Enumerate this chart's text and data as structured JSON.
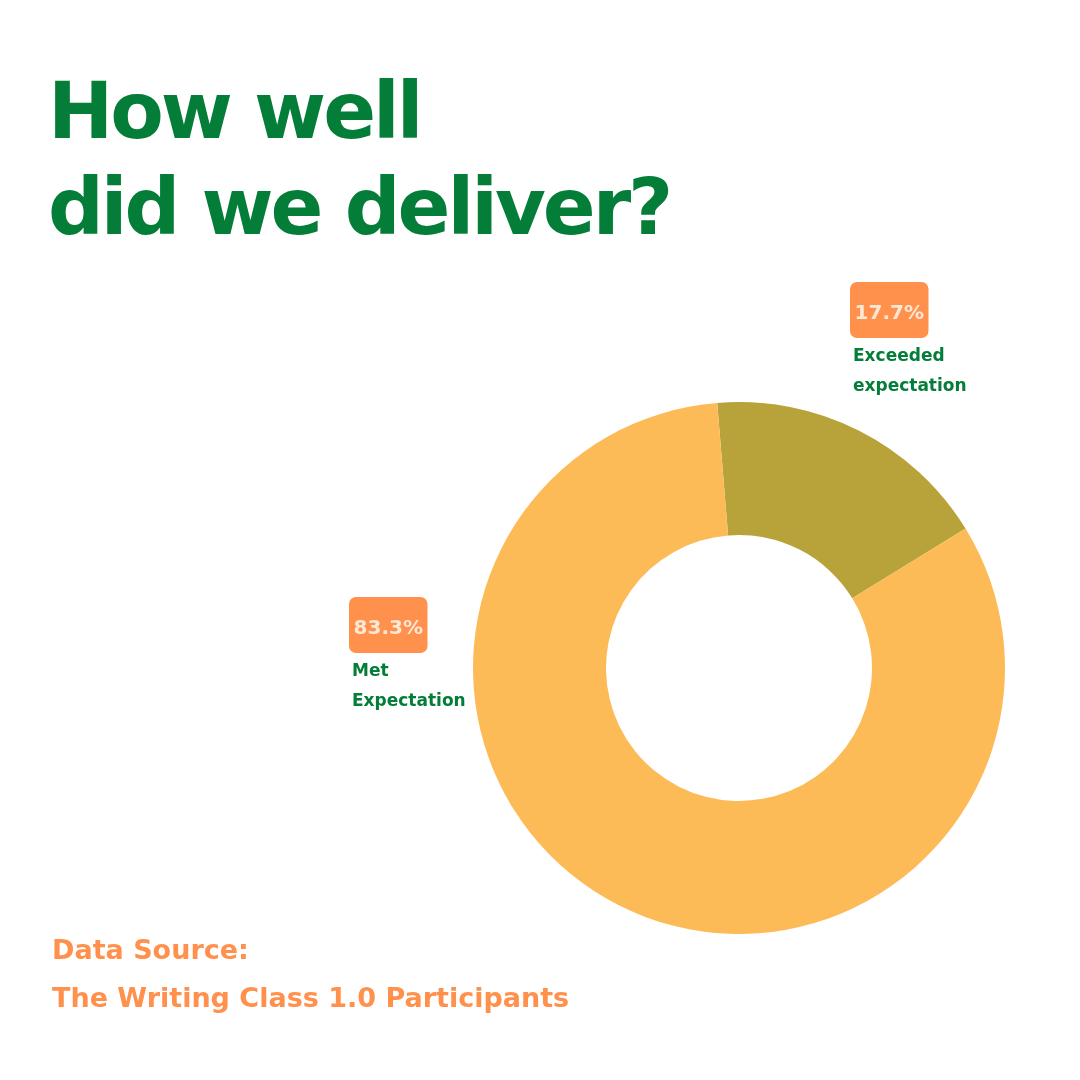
{
  "chart_data": {
    "type": "donut",
    "title": "How well did we deliver?",
    "categories": [
      "Exceeded expectation",
      "Met Expectation"
    ],
    "values": [
      17.7,
      83.3
    ],
    "colors": [
      "#b8a23a",
      "#fdbb58"
    ],
    "value_labels": [
      "17.7%",
      "83.3%"
    ],
    "annotations": [
      "Data Source:",
      "The Writing Class 1.0 Participants"
    ]
  }
}
